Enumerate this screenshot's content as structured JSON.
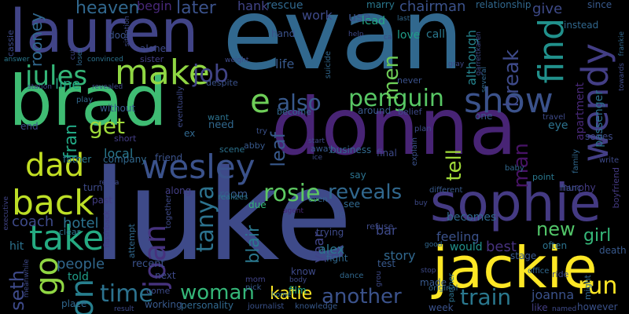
{
  "words": {
    "luke": "luke",
    "evan": "evan",
    "donna": "donna",
    "brad": "brad",
    "lauren": "lauren",
    "jackie": "jackie",
    "sophie": "sophie",
    "wesley": "wesley",
    "back": "back",
    "take": "take",
    "dad": "dad",
    "make": "make",
    "jules": "jules",
    "show": "show",
    "find": "find",
    "wendy": "wendy",
    "penguin": "penguin",
    "also": "also",
    "e": "e",
    "joan": "joan",
    "tanya": "tanya",
    "rosie": "rosie",
    "reveals": "reveals",
    "time": "time",
    "woman": "woman",
    "another": "another",
    "train": "train",
    "run": "run",
    "katie": "katie",
    "go": "go",
    "on": "on",
    "seth": "seth",
    "blair": "blair",
    "heaven": "heaven",
    "later": "later",
    "job": "job",
    "men": "men",
    "break": "break",
    "tell": "tell",
    "man": "man",
    "new": "new",
    "girl": "girl",
    "get": "get",
    "leaf": "leaf",
    "year": "year",
    "rooney": "rooney",
    "fran": "fran",
    "line": "line",
    "local": "local",
    "hotel": "hotel",
    "coach": "coach",
    "people": "people",
    "hit": "hit",
    "told": "told",
    "alex": "alex",
    "story": "story",
    "feeling": "feeling",
    "best": "best",
    "would": "would",
    "joanna": "joanna",
    "chairman": "chairman",
    "give": "give",
    "although": "although",
    "apartment": "apartment",
    "passenger": "passenger",
    "becomes": "becomes",
    "bar": "bar",
    "begin": "begin",
    "hank": "hank",
    "rescue": "rescue",
    "work": "work",
    "lead": "lead",
    "use": "use",
    "marry": "marry",
    "relationship": "relationship",
    "since": "since",
    "instead": "instead",
    "love": "love",
    "call": "call",
    "hand": "hand",
    "life": "life",
    "door": "door",
    "alone": "alone",
    "sister": "sister",
    "cassie": "cassie",
    "answer": "answer",
    "convinced": "convinced",
    "station": "station",
    "play": "play",
    "without": "without",
    "short": "short",
    "ex": "ex",
    "want": "want",
    "need": "need",
    "friend": "friend",
    "scene": "scene",
    "abby": "abby",
    "end": "end",
    "father": "father",
    "company": "company",
    "turn": "turn",
    "past": "past",
    "flashback": "flashback",
    "executive": "executive",
    "meanwhile": "meanwhile",
    "clear": "clear",
    "attempt": "attempt",
    "recent": "recent",
    "next": "next",
    "come": "come",
    "working": "working",
    "personality": "personality",
    "room": "room",
    "along": "along",
    "due": "due",
    "realizes": "realizes",
    "together": "together",
    "place": "place",
    "film": "film",
    "journalist": "journalist",
    "knowledge": "knowledge",
    "know": "know",
    "dance": "dance",
    "pick": "pick",
    "mom": "mom",
    "result": "result",
    "home": "home",
    "body": "body",
    "agent": "agent",
    "say": "say",
    "business": "business",
    "final": "final",
    "explain": "explain",
    "plan": "plan",
    "refuse": "refuse",
    "lie": "lie",
    "see": "see",
    "trying": "trying",
    "test": "test",
    "fight": "fight",
    "made": "made",
    "week": "week",
    "original": "original",
    "stop": "stop",
    "partner": "partner",
    "buy": "buy",
    "good": "good",
    "different": "different",
    "baby": "baby",
    "point": "point",
    "one": "one",
    "series": "series",
    "eye": "eye",
    "travel": "travel",
    "murphy": "murphy",
    "stage": "stage",
    "often": "often",
    "fianc": "fianc",
    "ride": "ride",
    "office": "office",
    "might": "might",
    "death": "death",
    "however": "however",
    "named": "named",
    "like": "like",
    "boyfriend": "boyfriend",
    "write": "write",
    "family": "family",
    "towards": "towards",
    "frankie": "frankie",
    "garrettkaren": "garrettkaren",
    "several": "several",
    "gray": "gray",
    "never": "never",
    "around": "around",
    "belief": "belief",
    "become": "become",
    "start": "start",
    "away": "away",
    "ice": "ice",
    "even": "even",
    "suicide": "suicide",
    "despite": "despite",
    "eventually": "eventually",
    "revealed": "revealed",
    "weight": "weight",
    "loses": "loses",
    "cut": "cut",
    "help": "help",
    "last": "last",
    "situation": "situation",
    "try": "try",
    "revea": "revea",
    "ca": "ca",
    "grou": "grou"
  }
}
